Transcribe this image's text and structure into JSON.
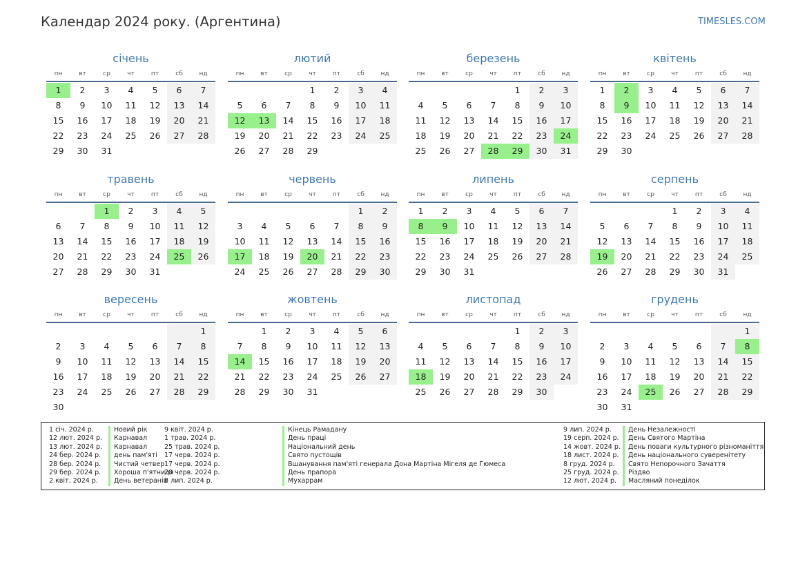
{
  "title": "Календар 2024 року. (Аргентина)",
  "site": "TIMESLES.COM",
  "colors": {
    "accent": "#3e78b3",
    "holiday": "#98f08c",
    "weekend": "#f2f2f2",
    "rule": "#47688c"
  },
  "weekdays": [
    "пн",
    "вт",
    "ср",
    "чт",
    "пт",
    "сб",
    "нд"
  ],
  "months": [
    {
      "name": "січень",
      "offset": 0,
      "days": 31,
      "holidays": [
        1
      ]
    },
    {
      "name": "лютий",
      "offset": 3,
      "days": 29,
      "holidays": [
        12,
        13
      ]
    },
    {
      "name": "березень",
      "offset": 4,
      "days": 31,
      "holidays": [
        24,
        28,
        29
      ]
    },
    {
      "name": "квітень",
      "offset": 0,
      "days": 30,
      "holidays": [
        2,
        9
      ]
    },
    {
      "name": "травень",
      "offset": 2,
      "days": 31,
      "holidays": [
        1,
        25
      ]
    },
    {
      "name": "червень",
      "offset": 5,
      "days": 30,
      "holidays": [
        17,
        20
      ]
    },
    {
      "name": "липень",
      "offset": 0,
      "days": 31,
      "holidays": [
        8,
        9
      ]
    },
    {
      "name": "серпень",
      "offset": 3,
      "days": 31,
      "holidays": [
        19
      ]
    },
    {
      "name": "вересень",
      "offset": 6,
      "days": 30,
      "holidays": []
    },
    {
      "name": "жовтень",
      "offset": 1,
      "days": 31,
      "holidays": [
        14
      ]
    },
    {
      "name": "листопад",
      "offset": 4,
      "days": 30,
      "holidays": [
        18
      ]
    },
    {
      "name": "грудень",
      "offset": 6,
      "days": 31,
      "holidays": [
        8,
        25
      ]
    }
  ],
  "holiday_columns": [
    [
      {
        "date": "1 січ. 2024 р.",
        "name": "Новий рік"
      },
      {
        "date": "12 лют. 2024 р.",
        "name": "Карнавал"
      },
      {
        "date": "13 лют. 2024 р.",
        "name": "Карнавал"
      },
      {
        "date": "24 бер. 2024 р.",
        "name": "день пам'яті"
      },
      {
        "date": "28 бер. 2024 р.",
        "name": "Чистий четвер"
      },
      {
        "date": "29 бер. 2024 р.",
        "name": "Хороша п'ятниця"
      },
      {
        "date": "2 квіт. 2024 р.",
        "name": "День ветеранів"
      }
    ],
    [
      {
        "date": "9 квіт. 2024 р.",
        "name": "Кінець Рамадану"
      },
      {
        "date": "1 трав. 2024 р.",
        "name": "День праці"
      },
      {
        "date": "25 трав. 2024 р.",
        "name": "Національний день"
      },
      {
        "date": "17 черв. 2024 р.",
        "name": "Свято пустощів"
      },
      {
        "date": "17 черв. 2024 р.",
        "name": "Вшанування пам'яті генерала Дона Мартіна Мігеля де Гюмеса"
      },
      {
        "date": "20 черв. 2024 р.",
        "name": "День прапора"
      },
      {
        "date": "8 лип. 2024 р.",
        "name": "Мухаррам"
      }
    ],
    [
      {
        "date": "9 лип. 2024 р.",
        "name": "День Незалежності"
      },
      {
        "date": "19 серп. 2024 р.",
        "name": "День Святого Мартіна"
      },
      {
        "date": "14 жовт. 2024 р.",
        "name": "День поваги культурного різноманіття"
      },
      {
        "date": "18 лист. 2024 р.",
        "name": "День національного суверенітету"
      },
      {
        "date": "8 груд. 2024 р.",
        "name": "Свято Непорочного Зачаття"
      },
      {
        "date": "25 груд. 2024 р.",
        "name": "Різдво"
      },
      {
        "date": "12 лют. 2024 р.",
        "name": "Масляний понеділок"
      }
    ]
  ]
}
